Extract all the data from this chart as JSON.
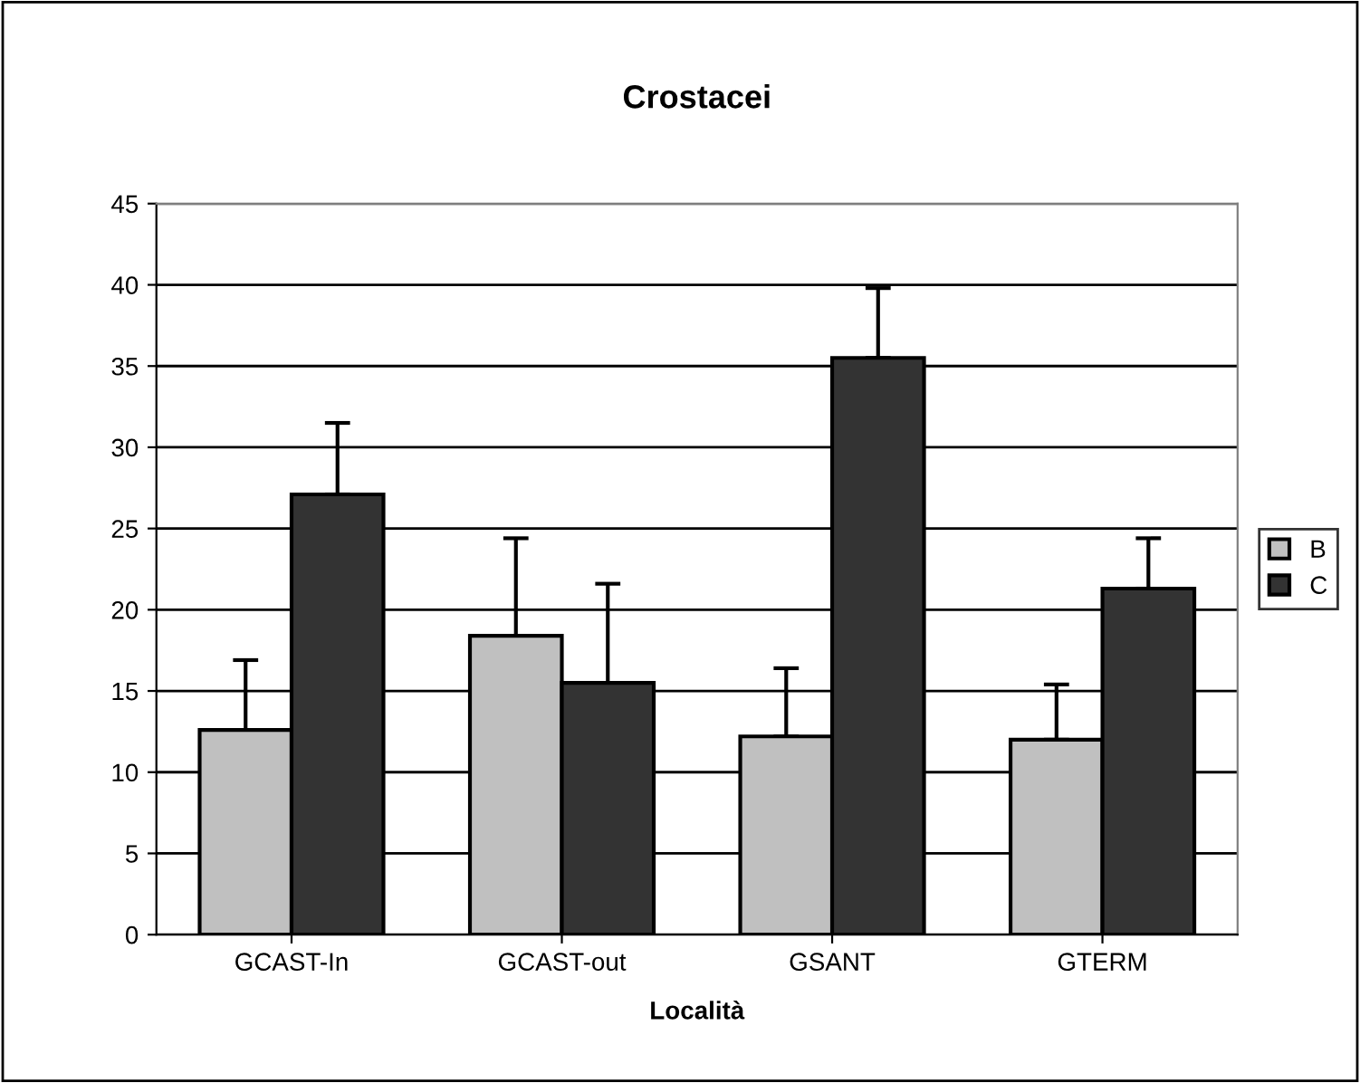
{
  "chart_data": {
    "type": "bar",
    "title": "Crostacei",
    "xlabel": "Località",
    "categories": [
      "GCAST-In",
      "GCAST-out",
      "GSANT",
      "GTERM"
    ],
    "series": [
      {
        "name": "B",
        "color": "#c0c0c0",
        "values": [
          12.6,
          18.4,
          12.2,
          12.0
        ],
        "errors": [
          [
            12.6,
            16.9
          ],
          [
            18.4,
            24.4
          ],
          [
            12.2,
            16.4
          ],
          [
            12.0,
            15.4
          ]
        ]
      },
      {
        "name": "C",
        "color": "#333333",
        "values": [
          27.1,
          15.5,
          35.5,
          21.3
        ],
        "errors": [
          [
            27.1,
            31.5
          ],
          [
            15.5,
            21.6
          ],
          [
            35.5,
            39.8
          ],
          [
            21.3,
            24.4
          ]
        ]
      }
    ],
    "ylim": [
      0,
      45
    ],
    "yticks": [
      0,
      5,
      10,
      15,
      20,
      25,
      30,
      35,
      40,
      45
    ],
    "grid": "y",
    "legend": "right"
  }
}
